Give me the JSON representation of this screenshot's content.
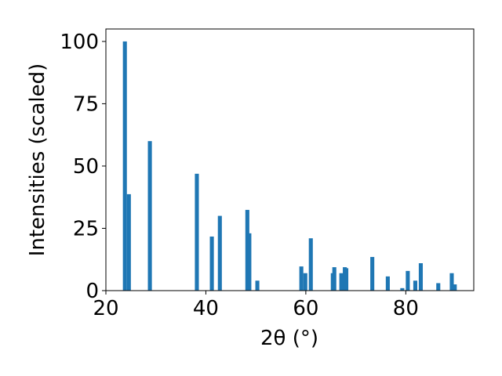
{
  "chart_data": {
    "type": "bar",
    "xlabel": "2θ (°)",
    "ylabel": "Intensities (scaled)",
    "x": [
      23.8,
      24.6,
      28.8,
      38.2,
      41.2,
      42.8,
      48.3,
      48.7,
      50.3,
      59.1,
      59.9,
      61.0,
      65.4,
      65.7,
      67.1,
      67.8,
      68.1,
      73.3,
      76.4,
      79.3,
      80.4,
      81.9,
      83.0,
      86.5,
      89.2,
      89.8
    ],
    "values": [
      100,
      38.7,
      60,
      46.9,
      21.7,
      30,
      32.4,
      23,
      4,
      9.7,
      7,
      21,
      7,
      9.4,
      7,
      9.4,
      9,
      13.5,
      5.7,
      1,
      7.9,
      4,
      11,
      3,
      7,
      2.5
    ],
    "color": "#1f77b4",
    "xlim": [
      20,
      93.6
    ],
    "xticks": [
      20,
      40,
      60,
      80
    ],
    "ylim": [
      0,
      105
    ],
    "yticks": [
      0,
      25,
      50,
      75,
      100
    ]
  }
}
